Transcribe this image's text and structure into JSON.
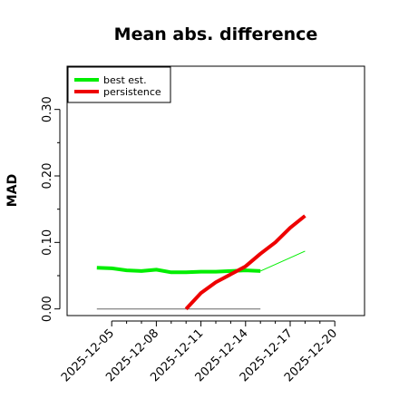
{
  "chart_data": {
    "type": "line",
    "title": "Mean abs. difference",
    "xlabel": "",
    "ylabel": "MAD",
    "x_ticks": [
      "2025-12-05",
      "2025-12-08",
      "2025-12-11",
      "2025-12-14",
      "2025-12-17",
      "2025-12-20"
    ],
    "y_ticks": [
      "0.00",
      "0.10",
      "0.20",
      "0.30"
    ],
    "xlim": [
      "2025-12-02",
      "2025-12-22"
    ],
    "ylim": [
      -0.01,
      0.365
    ],
    "grid": false,
    "legend_position": "top-left",
    "series": [
      {
        "name": "best est.",
        "color": "#00ee00",
        "x": [
          "2025-12-04",
          "2025-12-05",
          "2025-12-06",
          "2025-12-07",
          "2025-12-08",
          "2025-12-09",
          "2025-12-10",
          "2025-12-11",
          "2025-12-12",
          "2025-12-13",
          "2025-12-14",
          "2025-12-15"
        ],
        "y": [
          0.062,
          0.061,
          0.058,
          0.057,
          0.059,
          0.055,
          0.055,
          0.056,
          0.056,
          0.057,
          0.058,
          0.057
        ]
      },
      {
        "name": "persistence",
        "color": "#ee0000",
        "x": [
          "2025-12-10",
          "2025-12-11",
          "2025-12-12",
          "2025-12-13",
          "2025-12-14",
          "2025-12-15",
          "2025-12-16",
          "2025-12-17",
          "2025-12-18"
        ],
        "y": [
          0.0,
          0.024,
          0.04,
          0.052,
          0.064,
          0.083,
          0.1,
          0.122,
          0.14
        ]
      }
    ],
    "extension_line": {
      "color": "#00ee00",
      "x": [
        "2025-12-15",
        "2025-12-18"
      ],
      "y": [
        0.057,
        0.087
      ]
    },
    "reference_line": {
      "color": "#666666",
      "x": [
        "2025-12-04",
        "2025-12-15"
      ],
      "y": [
        0.0,
        0.0
      ]
    }
  }
}
